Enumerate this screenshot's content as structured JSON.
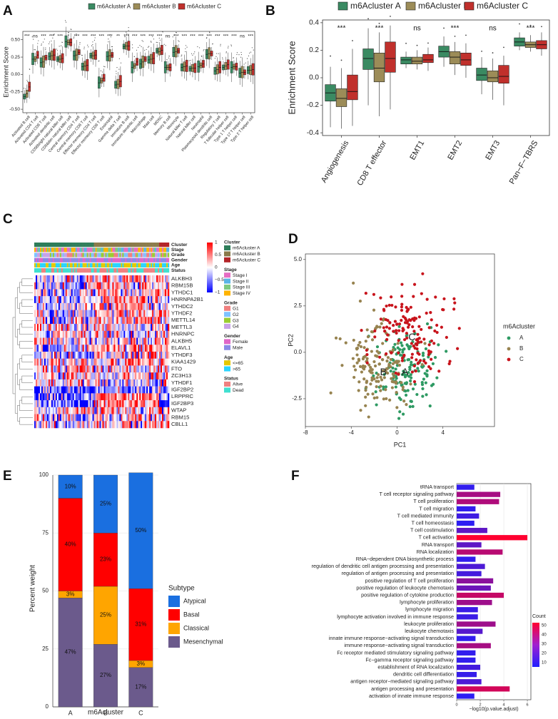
{
  "colors": {
    "clusterA": "#2e7d5a",
    "clusterB": "#8a7a4a",
    "clusterC": "#b32428",
    "atypical": "#1a6fe0",
    "basal": "#ff0000",
    "classical": "#ffa500",
    "mesenchymal": "#6b5a8c",
    "countLow": "#2020ff",
    "countHigh": "#ff0030"
  },
  "panel_labels": {
    "a": "A",
    "b": "B",
    "c": "C",
    "d": "D",
    "e": "E",
    "f": "F"
  },
  "chart_data": [
    {
      "id": "A",
      "type": "box",
      "legend": [
        "m6Acluster A",
        "m6Acluster B",
        "m6Acluster C"
      ],
      "ylabel": "Enrichment Score",
      "ylim": [
        -0.55,
        0.62
      ],
      "yticks": [
        -0.5,
        -0.25,
        0.0,
        0.25,
        0.5
      ],
      "categories": [
        "Activated B cell",
        "Activated CD4 T cell",
        "Activated CD8 T cell",
        "Activated dendritic cell",
        "CD56bright natural killer cell",
        "CD56dim natural killer cell",
        "Central memory CD4 T cell",
        "Central memory CD8 T cell",
        "Effector memeory CD4 T cell",
        "Effector memeory CD8 T cell",
        "Eosinophil",
        "Gamma delta T cell",
        "Immature B cell",
        "Immature dendritic cell",
        "Macrophage",
        "Mast cell",
        "MDSC",
        "Memory B cell",
        "Monocyte",
        "Natural killer T cell",
        "Natural killer cell",
        "Neutrophil",
        "Plasmacytoid dendritic cell",
        "Regulatory T cell",
        "T follicular helper cell",
        "Type 1 T helper cell",
        "Type 17 T helper cell",
        "Type 2 T helper cell"
      ],
      "significance": [
        "***",
        "ns",
        "***",
        "***",
        "***",
        "*",
        "***",
        "***",
        "***",
        "***",
        "***",
        "**",
        "***",
        "***",
        "***",
        "***",
        "***",
        "ns",
        "***",
        "***",
        "***",
        "***",
        "***",
        "***",
        "***",
        "***",
        "ns",
        "***"
      ],
      "medians": [
        [
          -0.32,
          0.22,
          0.17,
          0.26,
          0.22,
          0.47,
          0.27,
          0.11,
          0.27,
          -0.12,
          0.26,
          -0.15,
          0.4,
          0.1,
          0.15,
          0.21,
          0.34,
          0.1,
          0.32,
          0.1,
          0.08,
          0.11,
          0.29,
          0.05,
          0.1,
          0.1,
          0.02,
          0.06
        ],
        [
          -0.28,
          0.22,
          0.18,
          0.27,
          0.22,
          0.46,
          0.28,
          0.12,
          0.27,
          -0.09,
          0.27,
          -0.14,
          0.41,
          0.12,
          0.18,
          0.22,
          0.33,
          0.1,
          0.33,
          0.11,
          0.09,
          0.13,
          0.3,
          0.07,
          0.12,
          0.11,
          0.03,
          0.06
        ],
        [
          -0.18,
          0.28,
          0.24,
          0.28,
          0.23,
          0.46,
          0.32,
          0.13,
          0.28,
          -0.05,
          0.28,
          -0.1,
          0.41,
          0.18,
          0.22,
          0.23,
          0.35,
          0.1,
          0.34,
          0.12,
          0.09,
          0.15,
          0.3,
          0.1,
          0.14,
          0.11,
          0.03,
          0.07
        ]
      ]
    },
    {
      "id": "B",
      "type": "box",
      "legend": [
        "m6Acluster A",
        "m6Acluster B",
        "m6Acluster C"
      ],
      "ylabel": "Enrichment Score",
      "ylim": [
        -0.42,
        0.42
      ],
      "yticks": [
        -0.4,
        -0.2,
        0.0,
        0.2,
        0.4
      ],
      "categories": [
        "Angiogenesis",
        "CD8 T effector",
        "EMT1",
        "EMT2",
        "EMT3",
        "Pan−F−TBRS"
      ],
      "significance": [
        "***",
        "***",
        "ns",
        "***",
        "ns",
        "***"
      ],
      "boxes": [
        [
          [
            -0.36,
            -0.17,
            -0.11,
            -0.05,
            0.08
          ],
          [
            -0.37,
            -0.21,
            -0.15,
            -0.08,
            0.07
          ],
          [
            -0.35,
            -0.16,
            -0.1,
            0.02,
            0.21
          ]
        ],
        [
          [
            -0.2,
            0.06,
            0.14,
            0.21,
            0.36
          ],
          [
            -0.28,
            -0.03,
            0.07,
            0.18,
            0.33
          ],
          [
            -0.23,
            0.04,
            0.14,
            0.26,
            0.38
          ]
        ],
        [
          [
            0.07,
            0.1,
            0.13,
            0.15,
            0.19
          ],
          [
            0.06,
            0.1,
            0.12,
            0.15,
            0.2
          ],
          [
            0.05,
            0.11,
            0.13,
            0.17,
            0.22
          ]
        ],
        [
          [
            0.08,
            0.15,
            0.19,
            0.23,
            0.3
          ],
          [
            0.02,
            0.1,
            0.15,
            0.19,
            0.26
          ],
          [
            0.0,
            0.09,
            0.13,
            0.18,
            0.25
          ]
        ],
        [
          [
            -0.12,
            -0.02,
            0.02,
            0.07,
            0.15
          ],
          [
            -0.16,
            -0.03,
            0.0,
            0.05,
            0.14
          ],
          [
            -0.2,
            -0.04,
            0.01,
            0.09,
            0.16
          ]
        ],
        [
          [
            0.2,
            0.23,
            0.26,
            0.29,
            0.33
          ],
          [
            0.19,
            0.22,
            0.24,
            0.26,
            0.31
          ],
          [
            0.16,
            0.21,
            0.24,
            0.27,
            0.33
          ]
        ]
      ]
    },
    {
      "id": "C",
      "type": "heatmap",
      "annotation_rows": [
        "Cluster",
        "Stage",
        "Grade",
        "Gender",
        "Age",
        "Status"
      ],
      "genes": [
        "ALKBH3",
        "RBM15B",
        "YTHDC1",
        "HNRNPA2B1",
        "YTHDC2",
        "YTHDF2",
        "METTL14",
        "METTL3",
        "HNRNPC",
        "ALKBH5",
        "ELAVL1",
        "YTHDF3",
        "KIAA1429",
        "FTO",
        "ZC3H13",
        "YTHDF1",
        "IGF2BP2",
        "LRPPRC",
        "IGF2BP3",
        "WTAP",
        "RBM15",
        "CBLL1"
      ],
      "colorbar_ticks": [
        "1",
        "0.5",
        "0",
        "−0.5",
        "−1"
      ],
      "legend_groups": [
        {
          "title": "Cluster",
          "items": [
            "m6Acluster A",
            "m6Acluster B",
            "m6Acluster C"
          ],
          "colors": [
            "#2e7d5a",
            "#8a7a4a",
            "#b32428"
          ]
        },
        {
          "title": "Stage",
          "items": [
            "Stage I",
            "Stage II",
            "Stage III",
            "Stage IV"
          ],
          "colors": [
            "#e66ec3",
            "#5ab4e6",
            "#7fc97f",
            "#ffb300"
          ]
        },
        {
          "title": "Grade",
          "items": [
            "G1",
            "G2",
            "G3",
            "G4"
          ],
          "colors": [
            "#f08080",
            "#7fc3ff",
            "#9acd32",
            "#c8a2e8"
          ]
        },
        {
          "title": "Gender",
          "items": [
            "Female",
            "Male"
          ],
          "colors": [
            "#e066c8",
            "#8a8ae6"
          ]
        },
        {
          "title": "Age",
          "items": [
            "<=65",
            ">65"
          ],
          "colors": [
            "#e6c800",
            "#2ad4ff"
          ]
        },
        {
          "title": "Status",
          "items": [
            "Alive",
            "Dead"
          ],
          "colors": [
            "#f08080",
            "#40e0d0"
          ]
        }
      ]
    },
    {
      "id": "D",
      "type": "scatter",
      "xlabel": "PC1",
      "ylabel": "PC2",
      "xlim": [
        -8,
        8.5
      ],
      "ylim": [
        -4,
        5.3
      ],
      "xticks": [
        -8,
        -4,
        0,
        4
      ],
      "yticks": [
        -2.5,
        0.0,
        2.5,
        5.0
      ],
      "legend_title": "m6Acluster",
      "legend": [
        "A",
        "B",
        "C"
      ],
      "centroids": [
        {
          "label": "A",
          "x": 0.7,
          "y": -1.1
        },
        {
          "label": "B",
          "x": -1.2,
          "y": -1.1
        },
        {
          "label": "C",
          "x": 1.3,
          "y": 0.8
        }
      ],
      "clusters": [
        {
          "name": "A",
          "cx": 1.0,
          "cy": -1.0,
          "sx": 1.4,
          "sy": 1.1,
          "n": 150
        },
        {
          "name": "B",
          "cx": -1.8,
          "cy": -0.6,
          "sx": 1.5,
          "sy": 1.2,
          "n": 150
        },
        {
          "name": "C",
          "cx": 1.2,
          "cy": 1.1,
          "sx": 1.8,
          "sy": 1.3,
          "n": 150
        }
      ]
    },
    {
      "id": "E",
      "type": "stacked-bar",
      "xlabel": "m6Acluster",
      "ylabel": "Percent weight",
      "ylim": [
        0,
        100
      ],
      "yticks": [
        0,
        25,
        50,
        75,
        100
      ],
      "categories": [
        "A",
        "B",
        "C"
      ],
      "legend_title": "Subtype",
      "series": [
        {
          "name": "Mesenchymal",
          "values": [
            47,
            27,
            17
          ],
          "labels": [
            "47%",
            "27%",
            "17%"
          ]
        },
        {
          "name": "Classical",
          "values": [
            3,
            25,
            3
          ],
          "labels": [
            "3%",
            "25%",
            "3%"
          ]
        },
        {
          "name": "Basal",
          "values": [
            40,
            23,
            31
          ],
          "labels": [
            "40%",
            "23%",
            "31%"
          ]
        },
        {
          "name": "Atypical",
          "values": [
            10,
            25,
            50
          ],
          "labels": [
            "10%",
            "25%",
            "50%"
          ]
        }
      ]
    },
    {
      "id": "F",
      "type": "bar",
      "orientation": "horizontal",
      "xlabel": "−log10(p.value.adjust)",
      "xlim": [
        0,
        6.3
      ],
      "xticks": [
        0,
        2,
        4,
        6
      ],
      "legend_title": "Count",
      "colorbar_ticks": [
        "50",
        "40",
        "30",
        "20",
        "10"
      ],
      "categories": [
        "tRNA transport",
        "T cell receptor signaling pathway",
        "T cell proliferation",
        "T cell migration",
        "T cell mediated immunity",
        "T cell homeostasis",
        "T cell costimulation",
        "T cell activation",
        "RNA transport",
        "RNA localization",
        "RNA−dependent DNA biosynthetic process",
        "regulation of dendritic cell antigen processing and presentation",
        "regulation of antigen processing and presentation",
        "positive regulation of T cell proliferation",
        "positive regulation of leukocyte chemotaxis",
        "positive regulation of cytokine production",
        "lymphocyte proliferation",
        "lymphocyte migration",
        "lymphocyte activation involved in immune response",
        "leukocyte proliferation",
        "leukocyte chemotaxis",
        "innate immune response−activating signal transduction",
        "immune response−activating signal transduction",
        "Fc receptor mediated stimulatory signaling pathway",
        "Fc−gamma receptor signaling pathway",
        "establishment of RNA localization",
        "dendritic cell differentiation",
        "antigen receptor−mediated signaling pathway",
        "antigen processing and presentation",
        "activation of innate immune response"
      ],
      "values": [
        1.5,
        3.7,
        3.6,
        1.6,
        1.9,
        1.5,
        2.6,
        6.0,
        2.1,
        3.9,
        1.6,
        2.4,
        2.1,
        3.1,
        2.9,
        4.0,
        3.0,
        1.8,
        1.8,
        3.3,
        2.2,
        1.6,
        2.9,
        1.6,
        1.6,
        2.0,
        1.7,
        2.1,
        4.5,
        1.5
      ],
      "counts": [
        12,
        38,
        40,
        12,
        15,
        11,
        22,
        58,
        22,
        42,
        12,
        18,
        16,
        32,
        25,
        45,
        36,
        14,
        14,
        36,
        20,
        12,
        38,
        12,
        12,
        16,
        13,
        18,
        48,
        11
      ]
    }
  ]
}
